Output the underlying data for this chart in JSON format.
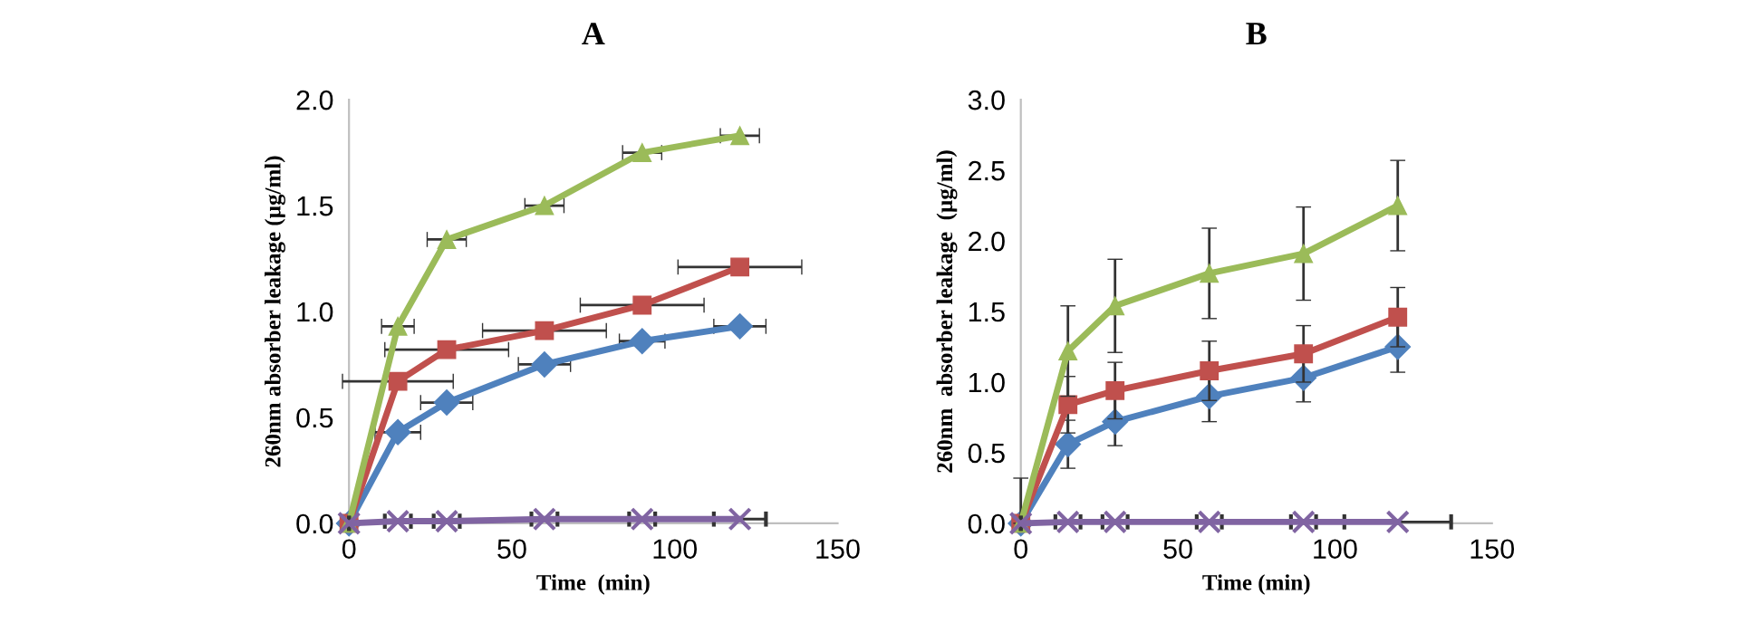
{
  "chart_data": [
    {
      "type": "line",
      "title": "A",
      "xlabel": "Time  (min)",
      "ylabel": "260nm absorber leakage (µg/ml)",
      "x": [
        0,
        15,
        30,
        60,
        90,
        120
      ],
      "xlim": [
        0,
        150
      ],
      "xticks": [
        0,
        50,
        100,
        150
      ],
      "ylim": [
        0,
        2.0
      ],
      "yticks": [
        {
          "value": 0,
          "label": "0.0"
        },
        {
          "value": 0.5,
          "label": "0.5"
        },
        {
          "value": 1.0,
          "label": "1.0"
        },
        {
          "value": 1.5,
          "label": "1.5"
        },
        {
          "value": 2.0,
          "label": "2.0"
        }
      ],
      "grid": false,
      "legend": false,
      "line_style": "solid",
      "series": [
        {
          "color": "#4f81bd",
          "marker": "diamond",
          "values": [
            0,
            0.43,
            0.57,
            0.75,
            0.86,
            0.93
          ],
          "xerrors": [
            null,
            7,
            8,
            8,
            7,
            8
          ]
        },
        {
          "color": "#c0504d",
          "marker": "square",
          "values": [
            0,
            0.67,
            0.82,
            0.91,
            1.03,
            1.21
          ],
          "xerrors": [
            null,
            17,
            19,
            19,
            19,
            19
          ]
        },
        {
          "color": "#9bbb59",
          "marker": "triangle",
          "values": [
            0,
            0.93,
            1.34,
            1.5,
            1.75,
            1.83
          ],
          "xerrors": [
            null,
            5,
            6,
            6,
            6,
            6
          ]
        },
        {
          "color": "#8064a2",
          "marker": "cross",
          "values": [
            0,
            0.01,
            0.01,
            0.02,
            0.02,
            0.02
          ],
          "xerrors": [
            null,
            4,
            4,
            4,
            4,
            8
          ]
        }
      ]
    },
    {
      "type": "line",
      "title": "B",
      "xlabel": "Time (min)",
      "ylabel": "260nm  absorber leakage  (µg/ml)",
      "x": [
        0,
        15,
        30,
        60,
        90,
        120
      ],
      "xlim": [
        0,
        150
      ],
      "xticks": [
        0,
        50,
        100,
        150
      ],
      "ylim": [
        0,
        3.0
      ],
      "yticks": [
        {
          "value": 0,
          "label": "0.0"
        },
        {
          "value": 0.5,
          "label": "0.5"
        },
        {
          "value": 1.0,
          "label": "1.0"
        },
        {
          "value": 1.5,
          "label": "1.5"
        },
        {
          "value": 2.0,
          "label": "2.0"
        },
        {
          "value": 2.5,
          "label": "2.5"
        },
        {
          "value": 3.0,
          "label": "3.0"
        }
      ],
      "grid": false,
      "legend": false,
      "line_style": "solid",
      "series": [
        {
          "color": "#4f81bd",
          "marker": "diamond",
          "values": [
            0,
            0.56,
            0.72,
            0.9,
            1.03,
            1.25
          ],
          "errors": [
            null,
            0.17,
            0.17,
            0.18,
            0.17,
            0.18
          ]
        },
        {
          "color": "#c0504d",
          "marker": "square",
          "values": [
            0,
            0.84,
            0.94,
            1.08,
            1.2,
            1.46
          ],
          "errors": [
            null,
            0.2,
            0.2,
            0.21,
            0.2,
            0.21
          ]
        },
        {
          "color": "#9bbb59",
          "marker": "triangle",
          "values": [
            0,
            1.22,
            1.54,
            1.77,
            1.91,
            2.25
          ],
          "errors": [
            [
              0,
              0.32
            ],
            0.32,
            0.33,
            0.32,
            0.33,
            0.32
          ]
        },
        {
          "color": "#8064a2",
          "marker": "cross",
          "values": [
            0,
            0.01,
            0.01,
            0.01,
            0.01,
            0.01
          ],
          "xerrors": [
            null,
            4,
            4,
            4,
            4,
            17
          ]
        }
      ]
    }
  ]
}
